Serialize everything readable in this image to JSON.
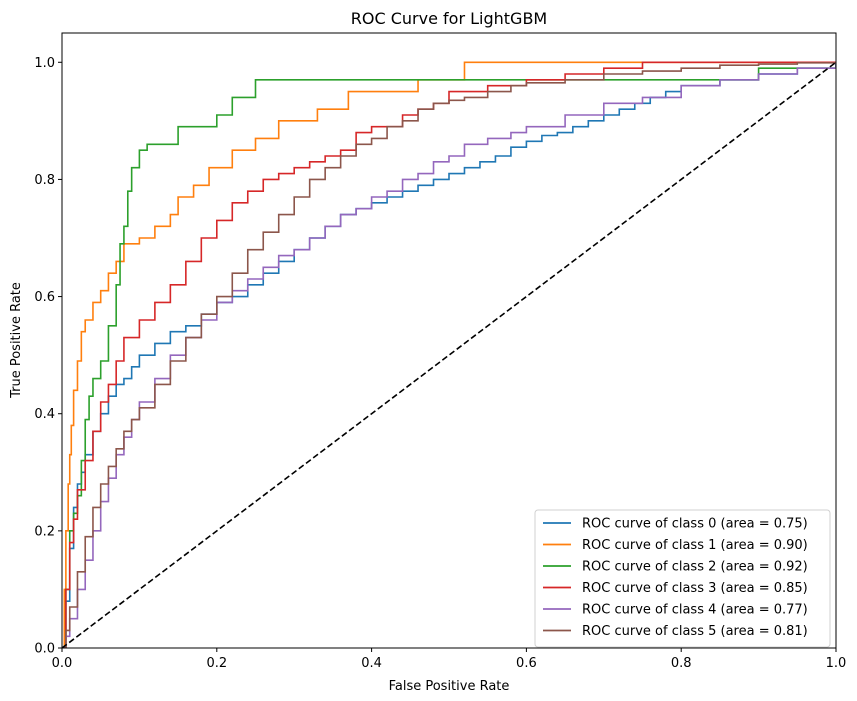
{
  "chart_data": {
    "type": "line",
    "title": "ROC Curve for LightGBM",
    "xlabel": "False Positive Rate",
    "ylabel": "True Positive Rate",
    "xlim": [
      0.0,
      1.0
    ],
    "ylim": [
      0.0,
      1.05
    ],
    "xticks": [
      "0.0",
      "0.2",
      "0.4",
      "0.6",
      "0.8",
      "1.0"
    ],
    "yticks": [
      "0.0",
      "0.2",
      "0.4",
      "0.6",
      "0.8",
      "1.0"
    ],
    "grid": false,
    "legend_position": "lower-right",
    "series": [
      {
        "name": "ROC curve of class 0 (area = 0.75)",
        "color": "#1f77b4",
        "x": [
          0,
          0.005,
          0.01,
          0.015,
          0.02,
          0.025,
          0.03,
          0.04,
          0.05,
          0.06,
          0.07,
          0.08,
          0.09,
          0.1,
          0.12,
          0.14,
          0.16,
          0.18,
          0.2,
          0.22,
          0.24,
          0.26,
          0.28,
          0.3,
          0.32,
          0.34,
          0.36,
          0.38,
          0.4,
          0.42,
          0.44,
          0.46,
          0.48,
          0.5,
          0.52,
          0.54,
          0.56,
          0.58,
          0.6,
          0.62,
          0.64,
          0.66,
          0.68,
          0.7,
          0.72,
          0.74,
          0.76,
          0.78,
          0.8,
          0.85,
          0.9,
          0.95,
          1.0
        ],
        "y": [
          0,
          0.08,
          0.17,
          0.24,
          0.28,
          0.3,
          0.33,
          0.37,
          0.4,
          0.43,
          0.45,
          0.46,
          0.48,
          0.5,
          0.52,
          0.54,
          0.55,
          0.57,
          0.59,
          0.6,
          0.62,
          0.64,
          0.66,
          0.68,
          0.7,
          0.72,
          0.74,
          0.75,
          0.76,
          0.77,
          0.78,
          0.79,
          0.8,
          0.81,
          0.82,
          0.83,
          0.84,
          0.855,
          0.865,
          0.875,
          0.88,
          0.89,
          0.9,
          0.91,
          0.92,
          0.93,
          0.94,
          0.95,
          0.96,
          0.97,
          0.98,
          0.99,
          1.0
        ]
      },
      {
        "name": "ROC curve of class 1 (area = 0.90)",
        "color": "#ff7f0e",
        "x": [
          0,
          0.003,
          0.005,
          0.008,
          0.01,
          0.012,
          0.015,
          0.02,
          0.025,
          0.03,
          0.04,
          0.05,
          0.06,
          0.07,
          0.08,
          0.1,
          0.12,
          0.14,
          0.15,
          0.17,
          0.19,
          0.2,
          0.22,
          0.25,
          0.28,
          0.33,
          0.37,
          0.4,
          0.46,
          0.52,
          0.6,
          0.7,
          0.8,
          1.0
        ],
        "y": [
          0,
          0.1,
          0.2,
          0.28,
          0.33,
          0.38,
          0.44,
          0.49,
          0.54,
          0.56,
          0.59,
          0.61,
          0.64,
          0.66,
          0.69,
          0.7,
          0.72,
          0.74,
          0.77,
          0.79,
          0.82,
          0.82,
          0.85,
          0.87,
          0.9,
          0.92,
          0.95,
          0.95,
          0.97,
          1.0,
          1.0,
          1.0,
          1.0,
          1.0
        ]
      },
      {
        "name": "ROC curve of class 2 (area = 0.92)",
        "color": "#2ca02c",
        "x": [
          0,
          0.005,
          0.01,
          0.015,
          0.02,
          0.025,
          0.03,
          0.035,
          0.04,
          0.05,
          0.06,
          0.07,
          0.075,
          0.08,
          0.085,
          0.09,
          0.1,
          0.11,
          0.13,
          0.15,
          0.2,
          0.22,
          0.25,
          0.3,
          0.4,
          0.5,
          0.6,
          0.7,
          0.8,
          0.9,
          1.0
        ],
        "y": [
          0,
          0.1,
          0.2,
          0.23,
          0.26,
          0.32,
          0.39,
          0.43,
          0.46,
          0.49,
          0.55,
          0.62,
          0.69,
          0.72,
          0.78,
          0.82,
          0.85,
          0.86,
          0.86,
          0.89,
          0.91,
          0.94,
          0.97,
          0.97,
          0.97,
          0.97,
          0.97,
          0.97,
          0.97,
          0.99,
          1.0
        ]
      },
      {
        "name": "ROC curve of class 3 (area = 0.85)",
        "color": "#d62728",
        "x": [
          0,
          0.005,
          0.01,
          0.015,
          0.02,
          0.03,
          0.04,
          0.05,
          0.06,
          0.07,
          0.08,
          0.1,
          0.12,
          0.14,
          0.16,
          0.18,
          0.2,
          0.22,
          0.24,
          0.26,
          0.28,
          0.3,
          0.32,
          0.34,
          0.36,
          0.38,
          0.4,
          0.44,
          0.46,
          0.48,
          0.5,
          0.55,
          0.6,
          0.65,
          0.7,
          0.75,
          0.8,
          1.0
        ],
        "y": [
          0,
          0.1,
          0.18,
          0.22,
          0.27,
          0.32,
          0.37,
          0.42,
          0.45,
          0.49,
          0.53,
          0.56,
          0.59,
          0.62,
          0.66,
          0.7,
          0.73,
          0.76,
          0.78,
          0.8,
          0.81,
          0.82,
          0.83,
          0.84,
          0.85,
          0.88,
          0.89,
          0.91,
          0.92,
          0.93,
          0.95,
          0.96,
          0.97,
          0.98,
          0.99,
          1.0,
          1.0,
          1.0
        ]
      },
      {
        "name": "ROC curve of class 4 (area = 0.77)",
        "color": "#9467bd",
        "x": [
          0,
          0.005,
          0.01,
          0.02,
          0.03,
          0.04,
          0.05,
          0.06,
          0.07,
          0.08,
          0.09,
          0.1,
          0.12,
          0.14,
          0.16,
          0.18,
          0.2,
          0.22,
          0.24,
          0.26,
          0.28,
          0.3,
          0.32,
          0.34,
          0.36,
          0.38,
          0.4,
          0.42,
          0.44,
          0.46,
          0.48,
          0.5,
          0.52,
          0.55,
          0.58,
          0.6,
          0.65,
          0.7,
          0.75,
          0.8,
          0.85,
          0.9,
          0.95,
          1.0
        ],
        "y": [
          0,
          0.02,
          0.05,
          0.1,
          0.15,
          0.2,
          0.25,
          0.29,
          0.33,
          0.36,
          0.39,
          0.42,
          0.46,
          0.5,
          0.53,
          0.56,
          0.59,
          0.61,
          0.63,
          0.65,
          0.67,
          0.68,
          0.7,
          0.72,
          0.74,
          0.75,
          0.77,
          0.78,
          0.8,
          0.81,
          0.83,
          0.84,
          0.86,
          0.87,
          0.88,
          0.89,
          0.91,
          0.93,
          0.94,
          0.96,
          0.97,
          0.98,
          0.99,
          1.0
        ]
      },
      {
        "name": "ROC curve of class 5 (area = 0.81)",
        "color": "#8c564b",
        "x": [
          0,
          0.005,
          0.01,
          0.02,
          0.03,
          0.04,
          0.05,
          0.06,
          0.07,
          0.08,
          0.09,
          0.1,
          0.12,
          0.14,
          0.16,
          0.18,
          0.2,
          0.22,
          0.24,
          0.26,
          0.28,
          0.3,
          0.32,
          0.34,
          0.36,
          0.38,
          0.4,
          0.42,
          0.44,
          0.46,
          0.48,
          0.5,
          0.52,
          0.55,
          0.58,
          0.6,
          0.65,
          0.7,
          0.75,
          0.8,
          0.85,
          0.9,
          0.95,
          1.0
        ],
        "y": [
          0,
          0.03,
          0.07,
          0.13,
          0.19,
          0.24,
          0.28,
          0.31,
          0.34,
          0.37,
          0.39,
          0.41,
          0.45,
          0.49,
          0.53,
          0.57,
          0.6,
          0.64,
          0.68,
          0.71,
          0.74,
          0.77,
          0.8,
          0.82,
          0.84,
          0.86,
          0.87,
          0.89,
          0.9,
          0.92,
          0.93,
          0.935,
          0.94,
          0.95,
          0.96,
          0.965,
          0.97,
          0.98,
          0.985,
          0.99,
          0.995,
          0.997,
          0.999,
          1.0
        ]
      }
    ],
    "reference_line": {
      "x": [
        0,
        1
      ],
      "y": [
        0,
        1
      ],
      "color": "#000000",
      "style": "dashed"
    }
  }
}
